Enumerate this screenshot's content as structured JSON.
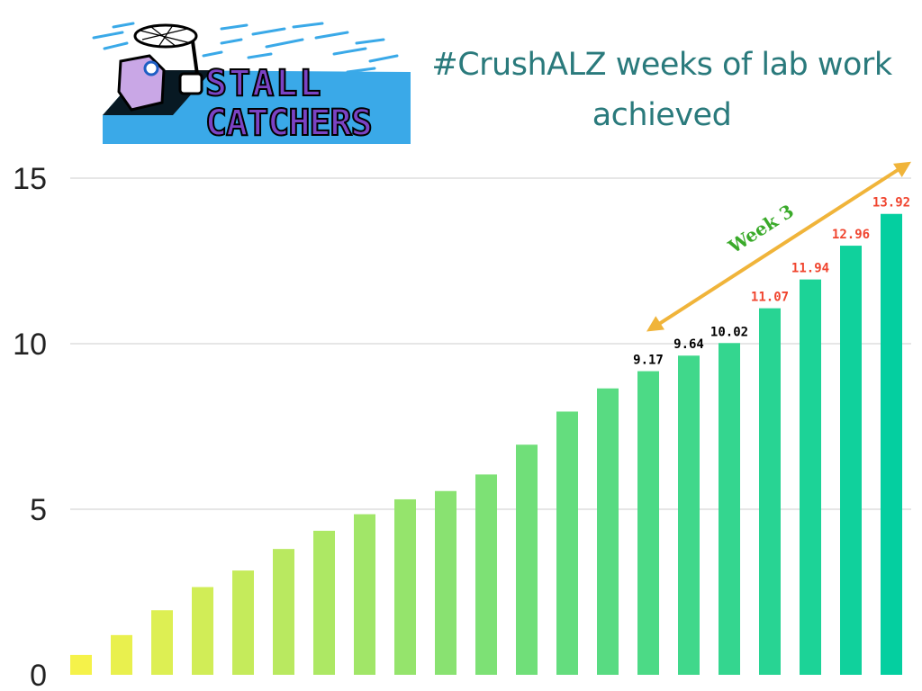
{
  "title": {
    "line1": "#CrushALZ weeks of lab work",
    "line2": "achieved"
  },
  "logo": {
    "line1": "STALL",
    "line2": "CATCHERS"
  },
  "colors": {
    "title": "#2a7a7c",
    "grid": "#cccccc",
    "bar_start": "#f5f24a",
    "bar_end": "#04cfa0",
    "label_black": "#000000",
    "label_red": "#f0452f",
    "arrow": "#f0b43a",
    "annotation": "#3aaa2a",
    "logo_text": "#7b43c4",
    "logo_back": "#3aa9e8"
  },
  "chart_data": {
    "type": "bar",
    "ylim": [
      0,
      15
    ],
    "yticks": [
      0,
      5,
      10,
      15
    ],
    "grid": true,
    "values": [
      0.6,
      1.2,
      1.95,
      2.65,
      3.15,
      3.8,
      4.35,
      4.85,
      5.3,
      5.55,
      6.05,
      6.95,
      7.95,
      8.65,
      9.17,
      9.64,
      10.02,
      11.07,
      11.94,
      12.96,
      13.92
    ],
    "data_labels": [
      {
        "index": 14,
        "text": "9.17",
        "color": "black"
      },
      {
        "index": 15,
        "text": "9.64",
        "color": "black"
      },
      {
        "index": 16,
        "text": "10.02",
        "color": "black"
      },
      {
        "index": 17,
        "text": "11.07",
        "color": "red"
      },
      {
        "index": 18,
        "text": "11.94",
        "color": "red"
      },
      {
        "index": 19,
        "text": "12.96",
        "color": "red"
      },
      {
        "index": 20,
        "text": "13.92",
        "color": "red"
      }
    ],
    "annotation": {
      "text": "Week 3",
      "from_index": 14,
      "to_index": 20
    }
  }
}
